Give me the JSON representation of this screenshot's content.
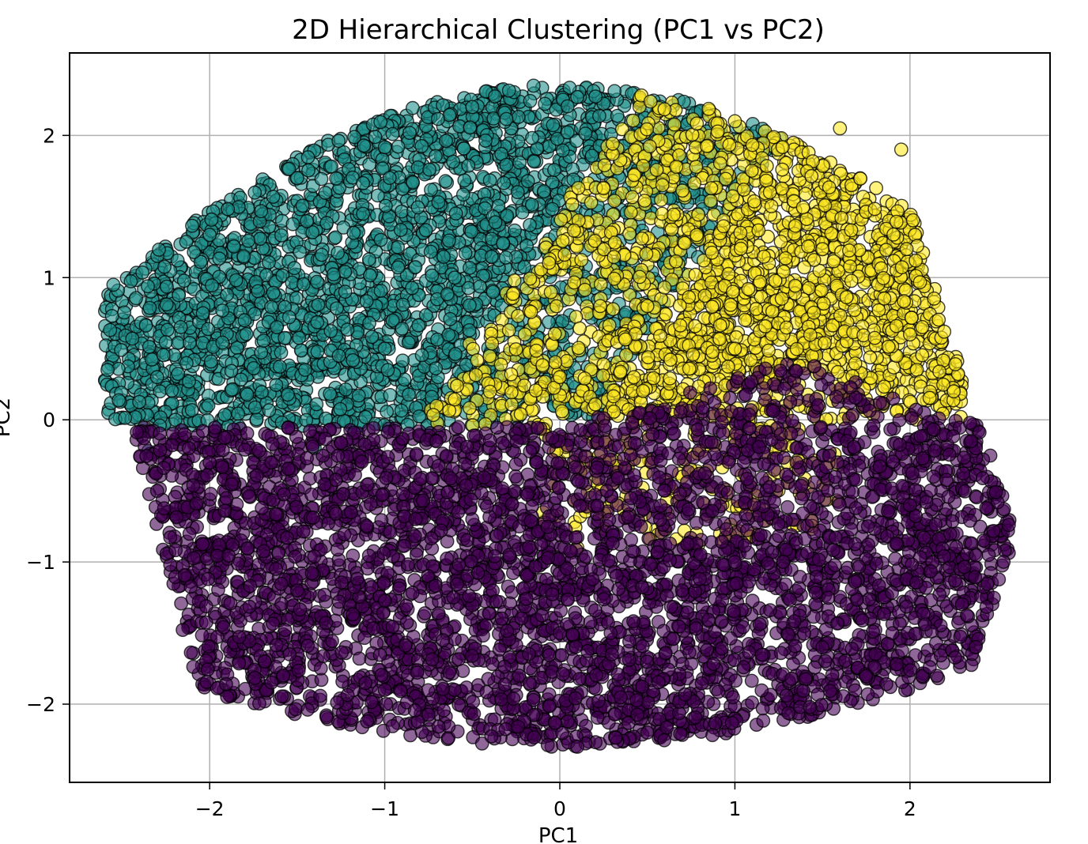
{
  "chart_data": {
    "type": "scatter",
    "title": "2D Hierarchical Clustering (PC1 vs PC2)",
    "xlabel": "PC1",
    "ylabel": "PC2",
    "xlim": [
      -2.8,
      2.8
    ],
    "ylim": [
      -2.55,
      2.58
    ],
    "xticks": [
      -2,
      -1,
      0,
      1,
      2
    ],
    "yticks": [
      -2,
      -1,
      0,
      1,
      2
    ],
    "xtick_labels": [
      "−2",
      "−1",
      "0",
      "1",
      "2"
    ],
    "ytick_labels": [
      "−2",
      "−1",
      "0",
      "1",
      "2"
    ],
    "grid": true,
    "marker_alpha": 0.6,
    "series": [
      {
        "cluster": 0,
        "color": "#440154",
        "description": "purple cluster, lower region",
        "center": [
          0.1,
          -0.95
        ],
        "x_range": [
          -2.4,
          2.55
        ],
        "y_range": [
          -2.3,
          1.05
        ],
        "approx_points": 4200,
        "sample": [
          [
            -2.0,
            -0.3
          ],
          [
            -1.5,
            -1.2
          ],
          [
            -1.0,
            -1.9
          ],
          [
            -0.5,
            -0.7
          ],
          [
            0.0,
            -1.5
          ],
          [
            0.5,
            -2.2
          ],
          [
            1.0,
            -1.0
          ],
          [
            1.5,
            -1.6
          ],
          [
            2.0,
            -0.6
          ],
          [
            2.45,
            -0.95
          ],
          [
            -2.3,
            -0.5
          ],
          [
            2.35,
            -0.15
          ],
          [
            0.1,
            -2.3
          ],
          [
            -1.9,
            -1.95
          ],
          [
            1.9,
            -1.5
          ]
        ]
      },
      {
        "cluster": 1,
        "color": "#21918c",
        "description": "teal cluster, upper-left region",
        "center": [
          -1.0,
          0.9
        ],
        "x_range": [
          -2.6,
          0.95
        ],
        "y_range": [
          -0.4,
          2.35
        ],
        "approx_points": 2800,
        "sample": [
          [
            -2.55,
            0.95
          ],
          [
            -2.3,
            0.3
          ],
          [
            -2.0,
            1.3
          ],
          [
            -1.5,
            1.7
          ],
          [
            -1.0,
            0.5
          ],
          [
            -0.5,
            2.2
          ],
          [
            -0.15,
            2.35
          ],
          [
            0.1,
            2.27
          ],
          [
            0.5,
            1.9
          ],
          [
            0.85,
            2.15
          ],
          [
            -2.35,
            -0.22
          ],
          [
            -1.4,
            -0.2
          ],
          [
            -0.6,
            1.0
          ],
          [
            -1.8,
            0.7
          ],
          [
            0.3,
            1.6
          ]
        ]
      },
      {
        "cluster": 2,
        "color": "#fde725",
        "description": "yellow cluster, upper-right region",
        "center": [
          1.1,
          0.85
        ],
        "x_range": [
          -0.3,
          2.3
        ],
        "y_range": [
          -0.9,
          2.15
        ],
        "approx_points": 2100,
        "sample": [
          [
            1.0,
            2.1
          ],
          [
            1.6,
            2.05
          ],
          [
            1.95,
            1.9
          ],
          [
            2.25,
            0.2
          ],
          [
            2.0,
            0.6
          ],
          [
            1.5,
            1.2
          ],
          [
            1.0,
            0.5
          ],
          [
            0.5,
            0.8
          ],
          [
            0.0,
            0.3
          ],
          [
            -0.2,
            0.6
          ],
          [
            0.1,
            -0.9
          ],
          [
            0.7,
            -0.4
          ],
          [
            1.3,
            -0.3
          ],
          [
            1.8,
            0.1
          ],
          [
            1.2,
            1.6
          ]
        ]
      }
    ]
  }
}
